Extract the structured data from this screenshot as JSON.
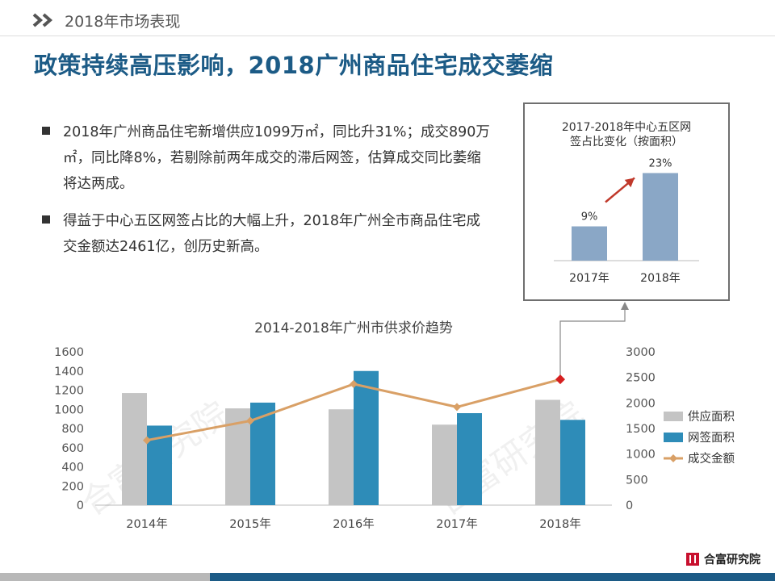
{
  "header": {
    "section_label": "2018年市场表现",
    "title": "政策持续高压影响，2018广州商品住宅成交萎缩"
  },
  "bullets": [
    {
      "text": "2018年广州商品住宅新增供应1099万㎡，同比升31%；成交890万㎡，同比降8%，若剔除前两年成交的滞后网签，估算成交同比萎缩将达两成。"
    },
    {
      "text": "得益于中心五区网签占比的大幅上升，2018年广州全市商品住宅成交金额达2461亿，创历史新高。"
    }
  ],
  "inset_chart": {
    "title_line1": "2017-2018年中心五区网",
    "title_line2": "签占比变化（按面积）",
    "chart_data": {
      "type": "bar",
      "categories": [
        "2017年",
        "2018年"
      ],
      "values": [
        9,
        23
      ],
      "data_labels": [
        "9%",
        "23%"
      ],
      "color": "#8aa7c6",
      "arrow_color": "#c0392b"
    }
  },
  "main_chart": {
    "watermark": "合富研究院",
    "chart_data": {
      "type": "bar",
      "title": "2014-2018年广州市供求价趋势",
      "categories": [
        "2014年",
        "2015年",
        "2016年",
        "2017年",
        "2018年"
      ],
      "series": [
        {
          "name": "供应面积",
          "type": "bar",
          "axis": "left",
          "color": "#c4c4c4",
          "values": [
            1170,
            1010,
            1000,
            840,
            1099
          ]
        },
        {
          "name": "网签面积",
          "type": "bar",
          "axis": "left",
          "color": "#2e8cb8",
          "values": [
            830,
            1070,
            1400,
            960,
            890
          ]
        },
        {
          "name": "成交金额",
          "type": "line",
          "axis": "right",
          "color": "#d9a066",
          "values": [
            1270,
            1650,
            2370,
            1920,
            2461
          ]
        }
      ],
      "y_left": {
        "min": 0,
        "max": 1600,
        "ticks": [
          "0",
          "200",
          "400",
          "600",
          "800",
          "1000",
          "1200",
          "1400",
          "1600"
        ]
      },
      "y_right": {
        "min": 0,
        "max": 3000,
        "ticks": [
          "0",
          "500",
          "1000",
          "1500",
          "2000",
          "2500",
          "3000"
        ]
      },
      "highlight_point_color": "#d62020",
      "legend": "right"
    }
  },
  "footer": {
    "brand": "合富研究院"
  }
}
